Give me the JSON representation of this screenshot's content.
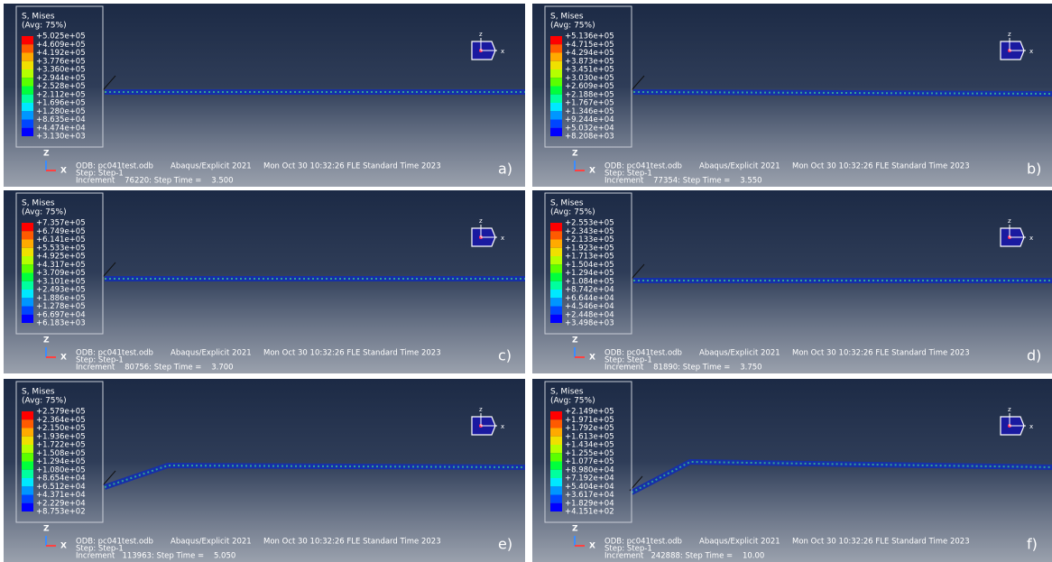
{
  "panels": [
    {
      "label": "a)",
      "legend_title": "S, Mises",
      "legend_avg": "(Avg: 75%)",
      "legend_values": [
        "+5.025e+05",
        "+4.609e+05",
        "+4.192e+05",
        "+3.776e+05",
        "+3.360e+05",
        "+2.944e+05",
        "+2.528e+05",
        "+2.112e+05",
        "+1.696e+05",
        "+1.280e+05",
        "+8.635e+04",
        "+4.474e+04",
        "+3.130e+03"
      ],
      "triad_z": "z",
      "triad_x": "x",
      "axis_z": "Z",
      "axis_x": "X",
      "odb": "ODB: pc041test.odb",
      "solver": "Abaqus/Explicit 2021",
      "date": "Mon Oct 30 10:32:26 FLE Standard Time 2023",
      "step": "Step: Step-1",
      "increment": "Increment    76220: Step Time =    3.500"
    },
    {
      "label": "b)",
      "legend_title": "S, Mises",
      "legend_avg": "(Avg: 75%)",
      "legend_values": [
        "+5.136e+05",
        "+4.715e+05",
        "+4.294e+05",
        "+3.873e+05",
        "+3.451e+05",
        "+3.030e+05",
        "+2.609e+05",
        "+2.188e+05",
        "+1.767e+05",
        "+1.346e+05",
        "+9.244e+04",
        "+5.032e+04",
        "+8.208e+03"
      ],
      "triad_z": "z",
      "triad_x": "x",
      "axis_z": "Z",
      "axis_x": "X",
      "odb": "ODB: pc041test.odb",
      "solver": "Abaqus/Explicit 2021",
      "date": "Mon Oct 30 10:32:26 FLE Standard Time 2023",
      "step": "Step: Step-1",
      "increment": "Increment    77354: Step Time =    3.550"
    },
    {
      "label": "c)",
      "legend_title": "S, Mises",
      "legend_avg": "(Avg: 75%)",
      "legend_values": [
        "+7.357e+05",
        "+6.749e+05",
        "+6.141e+05",
        "+5.533e+05",
        "+4.925e+05",
        "+4.317e+05",
        "+3.709e+05",
        "+3.101e+05",
        "+2.493e+05",
        "+1.886e+05",
        "+1.278e+05",
        "+6.697e+04",
        "+6.183e+03"
      ],
      "triad_z": "z",
      "triad_x": "x",
      "axis_z": "Z",
      "axis_x": "X",
      "odb": "ODB: pc041test.odb",
      "solver": "Abaqus/Explicit 2021",
      "date": "Mon Oct 30 10:32:26 FLE Standard Time 2023",
      "step": "Step: Step-1",
      "increment": "Increment    80756: Step Time =    3.700"
    },
    {
      "label": "d)",
      "legend_title": "S, Mises",
      "legend_avg": "(Avg: 75%)",
      "legend_values": [
        "+2.553e+05",
        "+2.343e+05",
        "+2.133e+05",
        "+1.923e+05",
        "+1.713e+05",
        "+1.504e+05",
        "+1.294e+05",
        "+1.084e+05",
        "+8.742e+04",
        "+6.644e+04",
        "+4.546e+04",
        "+2.448e+04",
        "+3.498e+03"
      ],
      "triad_z": "z",
      "triad_x": "x",
      "axis_z": "Z",
      "axis_x": "X",
      "odb": "ODB: pc041test.odb",
      "solver": "Abaqus/Explicit 2021",
      "date": "Mon Oct 30 10:32:26 FLE Standard Time 2023",
      "step": "Step: Step-1",
      "increment": "Increment    81890: Step Time =    3.750"
    },
    {
      "label": "e)",
      "legend_title": "S, Mises",
      "legend_avg": "(Avg: 75%)",
      "legend_values": [
        "+2.579e+05",
        "+2.364e+05",
        "+2.150e+05",
        "+1.936e+05",
        "+1.722e+05",
        "+1.508e+05",
        "+1.294e+05",
        "+1.080e+05",
        "+8.654e+04",
        "+6.512e+04",
        "+4.371e+04",
        "+2.229e+04",
        "+8.753e+02"
      ],
      "triad_z": "z",
      "triad_x": "x",
      "axis_z": "Z",
      "axis_x": "X",
      "odb": "ODB: pc041test.odb",
      "solver": "Abaqus/Explicit 2021",
      "date": "Mon Oct 30 10:32:26 FLE Standard Time 2023",
      "step": "Step: Step-1",
      "increment": "Increment   113963: Step Time =    5.050"
    },
    {
      "label": "f)",
      "legend_title": "S, Mises",
      "legend_avg": "(Avg: 75%)",
      "legend_values": [
        "+2.149e+05",
        "+1.971e+05",
        "+1.792e+05",
        "+1.613e+05",
        "+1.434e+05",
        "+1.255e+05",
        "+1.077e+05",
        "+8.980e+04",
        "+7.192e+04",
        "+5.404e+04",
        "+3.617e+04",
        "+1.829e+04",
        "+4.151e+02"
      ],
      "triad_z": "z",
      "triad_x": "x",
      "axis_z": "Z",
      "axis_x": "X",
      "odb": "ODB: pc041test.odb",
      "solver": "Abaqus/Explicit 2021",
      "date": "Mon Oct 30 10:32:26 FLE Standard Time 2023",
      "step": "Step: Step-1",
      "increment": "Increment   242888: Step Time =    10.00"
    }
  ]
}
